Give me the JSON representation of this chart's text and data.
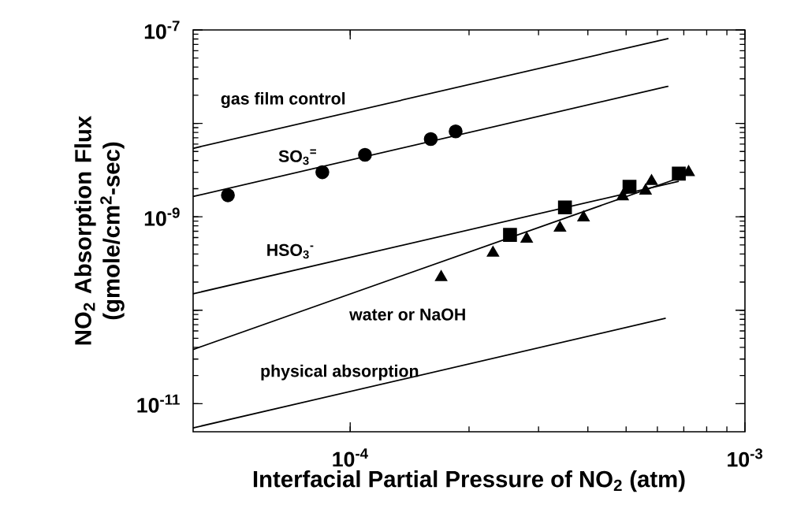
{
  "chart_data": {
    "type": "line",
    "log": "xy",
    "xlabel": "Interfacial Partial Pressure of NO$_{2}$ (atm)",
    "ylabel": "NO$_{2}$ Absorption Flux (gmole/cm$^{2}$-sec)",
    "xlim": [
      4e-05,
      0.001
    ],
    "ylim": [
      5e-12,
      1e-07
    ],
    "xticks": [
      {
        "value": 0.0001,
        "label": "10$^{-4}$"
      },
      {
        "value": 0.001,
        "label": "10$^{-3}$"
      }
    ],
    "yticks": [
      {
        "value": 1e-11,
        "label": "10$^{-11}$"
      },
      {
        "value": 1e-10,
        "label": null
      },
      {
        "value": 1e-09,
        "label": "10$^{-9}$"
      },
      {
        "value": 1e-08,
        "label": null
      },
      {
        "value": 1e-07,
        "label": "10$^{-7}$"
      }
    ],
    "grid": false,
    "series": [
      {
        "name": "gas film control",
        "color": "#000000",
        "marker": "none",
        "x": [
          4e-05,
          0.00064
        ],
        "values": [
          5.4e-09,
          8.1e-08
        ]
      },
      {
        "name": "SO$_{3}$$^{=}$",
        "color": "#000000",
        "marker": "none",
        "x": [
          4e-05,
          0.00064
        ],
        "values": [
          1.65e-09,
          2.5e-08
        ]
      },
      {
        "name": "HSO$_{3}$$^{-}$",
        "color": "#000000",
        "marker": "none",
        "x": [
          4e-05,
          0.00068
        ],
        "values": [
          1.5e-10,
          2.4e-09
        ]
      },
      {
        "name": "water or NaOH",
        "color": "#000000",
        "marker": "none",
        "x": [
          4e-05,
          0.00068
        ],
        "values": [
          3.8e-11,
          2.6e-09
        ]
      },
      {
        "name": "physical absorption",
        "color": "#000000",
        "marker": "none",
        "x": [
          4e-05,
          0.00063
        ],
        "values": [
          5.5e-12,
          8.2e-11
        ]
      },
      {
        "type": "scatter",
        "color": "#000000",
        "marker": "circle",
        "x": [
          4.9e-05,
          8.5e-05,
          0.000109,
          0.00016,
          0.000185
        ],
        "values": [
          1.7e-09,
          3e-09,
          4.6e-09,
          6.8e-09,
          8.2e-09
        ]
      },
      {
        "type": "scatter",
        "color": "#000000",
        "marker": "square",
        "x": [
          0.000254,
          0.00035,
          0.00051,
          0.00068
        ],
        "values": [
          6.4e-10,
          1.26e-09,
          2.1e-09,
          2.9e-09
        ]
      },
      {
        "type": "scatter",
        "color": "#000000",
        "marker": "triangle",
        "x": [
          0.00017,
          0.00023,
          0.00028,
          0.00034,
          0.00039,
          0.00049,
          0.00056,
          0.00058,
          0.00072
        ],
        "values": [
          2.25e-10,
          4.1e-10,
          5.8e-10,
          7.6e-10,
          9.8e-10,
          1.65e-09,
          1.9e-09,
          2.4e-09,
          3e-09
        ]
      }
    ]
  }
}
